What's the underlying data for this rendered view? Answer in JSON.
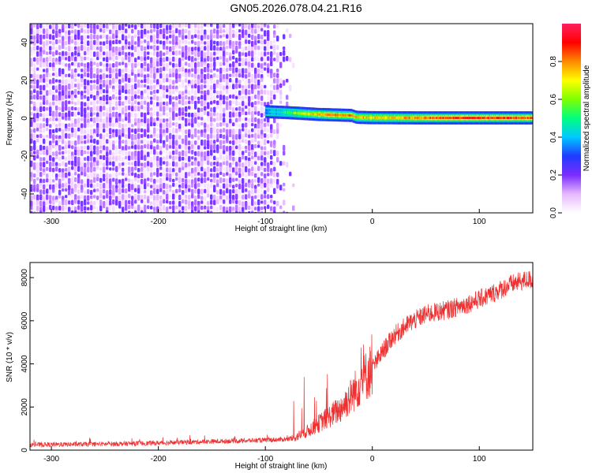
{
  "title": "GN05.2026.078.04.21.R16",
  "chart_data": [
    {
      "type": "heatmap",
      "xlabel": "Height of straight line (km)",
      "ylabel": "Frequency (Hz)",
      "xlim": [
        -320,
        150
      ],
      "ylim": [
        -50,
        50
      ],
      "x_ticks": [
        -300,
        -200,
        -100,
        0,
        100
      ],
      "y_ticks": [
        -40,
        -20,
        0,
        20,
        40
      ],
      "noise_region_x": [
        -320,
        -73
      ],
      "signal_band": [
        {
          "x": -100,
          "freq": 3.5,
          "amp": 0.35
        },
        {
          "x": -80,
          "freq": 3.0,
          "amp": 0.5
        },
        {
          "x": -65,
          "freq": 2.5,
          "amp": 0.65
        },
        {
          "x": -50,
          "freq": 2.0,
          "amp": 0.75
        },
        {
          "x": -20,
          "freq": 1.5,
          "amp": 0.8
        },
        {
          "x": -15,
          "freq": 0.5,
          "amp": 0.75
        },
        {
          "x": 0,
          "freq": 0.3,
          "amp": 0.7
        },
        {
          "x": 40,
          "freq": 0.2,
          "amp": 0.75
        },
        {
          "x": 80,
          "freq": 0.2,
          "amp": 0.85
        },
        {
          "x": 120,
          "freq": 0.2,
          "amp": 0.85
        },
        {
          "x": 150,
          "freq": 0.2,
          "amp": 0.8
        }
      ],
      "colorbar": {
        "label": "Normalized spectral amplitude",
        "range": [
          0,
          1
        ],
        "ticks": [
          "0.0",
          "0.2",
          "0.4",
          "0.6",
          "0.8"
        ],
        "colors": [
          "#ffffff",
          "#e6b8ff",
          "#7b2cff",
          "#1f3cff",
          "#00c8ff",
          "#00ff80",
          "#7dff00",
          "#ffff00",
          "#ff8a00",
          "#ff0000",
          "#ff2060"
        ]
      }
    },
    {
      "type": "line",
      "xlabel": "Height of straight line (km)",
      "ylabel": "SNR (10 * v/v)",
      "xlim": [
        -320,
        150
      ],
      "ylim": [
        0,
        8700
      ],
      "x_ticks": [
        -300,
        -200,
        -100,
        0,
        100
      ],
      "y_ticks": [
        0,
        2000,
        4000,
        6000,
        8000
      ],
      "color": "#f03030",
      "trend": [
        {
          "x": -320,
          "y": 250
        },
        {
          "x": -250,
          "y": 280
        },
        {
          "x": -200,
          "y": 330
        },
        {
          "x": -150,
          "y": 400
        },
        {
          "x": -100,
          "y": 460
        },
        {
          "x": -75,
          "y": 520
        },
        {
          "x": -60,
          "y": 900
        },
        {
          "x": -45,
          "y": 1400
        },
        {
          "x": -30,
          "y": 1900
        },
        {
          "x": -20,
          "y": 2500
        },
        {
          "x": -10,
          "y": 3200
        },
        {
          "x": 0,
          "y": 3800
        },
        {
          "x": 10,
          "y": 4600
        },
        {
          "x": 20,
          "y": 5300
        },
        {
          "x": 35,
          "y": 5900
        },
        {
          "x": 50,
          "y": 6300
        },
        {
          "x": 70,
          "y": 6500
        },
        {
          "x": 90,
          "y": 6800
        },
        {
          "x": 110,
          "y": 7200
        },
        {
          "x": 130,
          "y": 7700
        },
        {
          "x": 145,
          "y": 7900
        }
      ]
    }
  ]
}
